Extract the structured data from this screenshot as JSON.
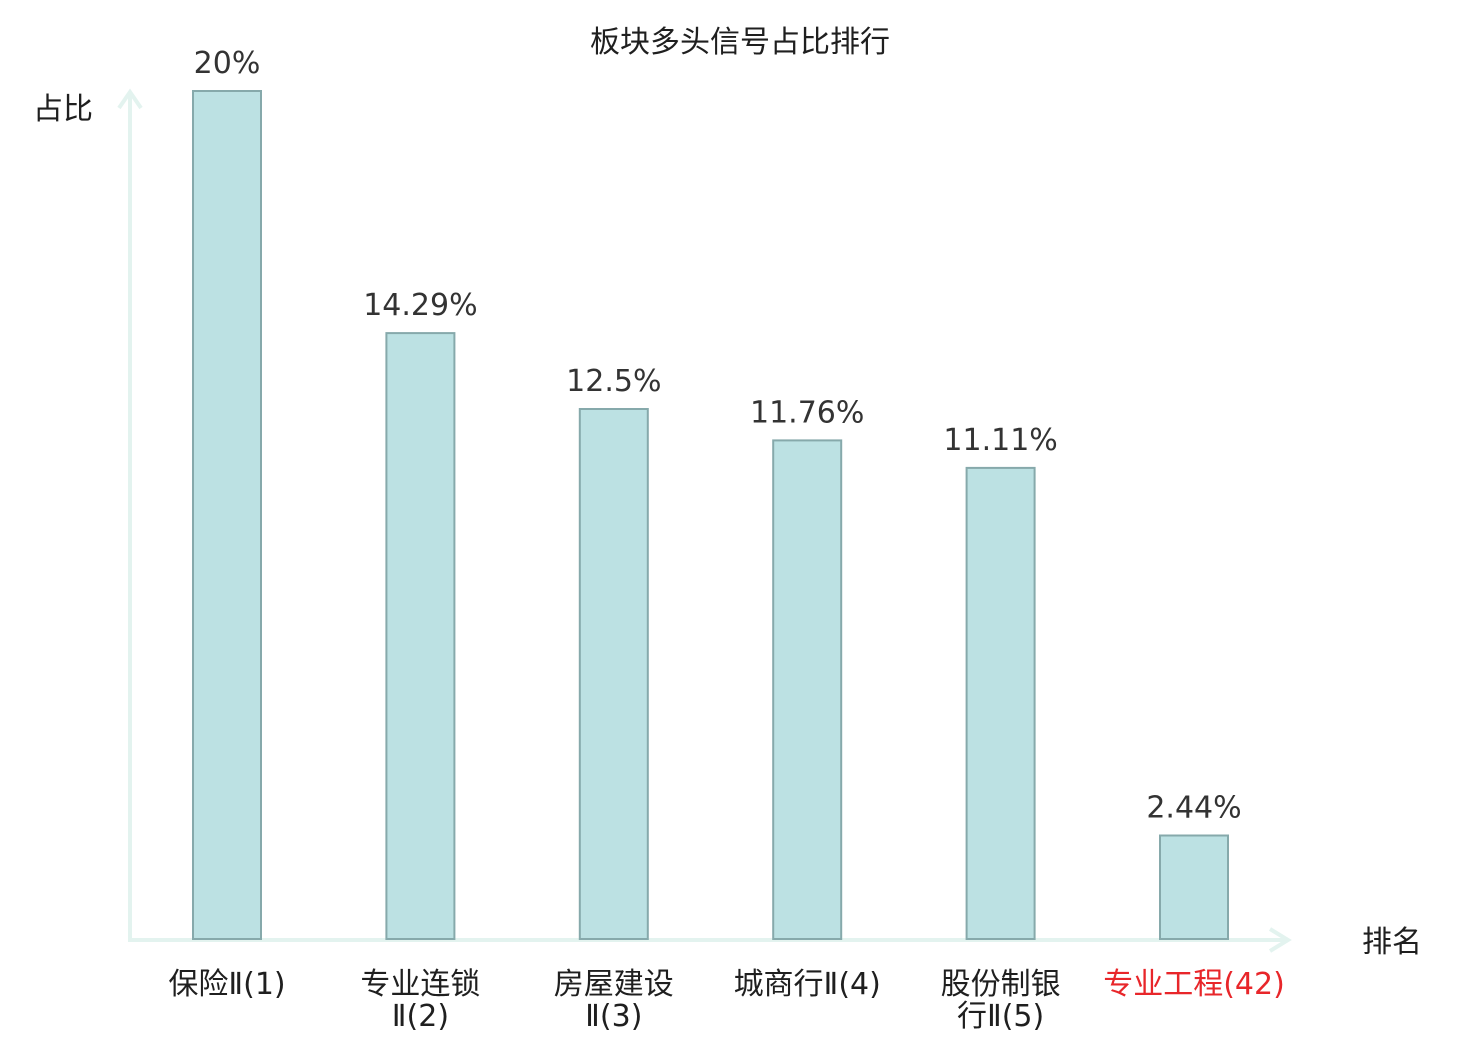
{
  "chart_data": {
    "type": "bar",
    "title": "板块多头信号占比排行",
    "ylabel": "占比",
    "xlabel": "排名",
    "ylim": [
      0,
      20
    ],
    "grid": false,
    "legend": "none",
    "categories": [
      [
        "保险Ⅱ(1)"
      ],
      [
        "专业连锁",
        "Ⅱ(2)"
      ],
      [
        "房屋建设",
        "Ⅱ(3)"
      ],
      [
        "城商行Ⅱ(4)"
      ],
      [
        "股份制银",
        "行Ⅱ(5)"
      ],
      [
        "专业工程(42)"
      ]
    ],
    "values": [
      20,
      14.29,
      12.5,
      11.76,
      11.11,
      2.44
    ],
    "value_labels": [
      "20%",
      "14.29%",
      "12.5%",
      "11.76%",
      "11.11%",
      "2.44%"
    ],
    "highlight_index": 5,
    "colors": {
      "bar_fill": "#bce1e3",
      "bar_stroke": "#86a9ab",
      "axis": "#e3f3ef",
      "highlight_text": "#e8262a",
      "text": "#1f1f1f"
    }
  }
}
